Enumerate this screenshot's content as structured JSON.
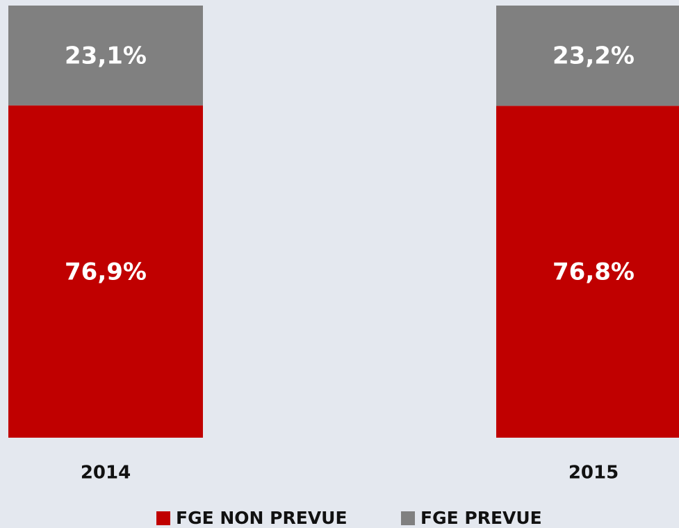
{
  "chart_data": {
    "type": "stacked_bar",
    "categories": [
      "2014",
      "2015"
    ],
    "series": [
      {
        "name": "FGE NON PREVUE",
        "color": "#c00000",
        "values": [
          76.9,
          76.8
        ],
        "value_labels": [
          "76,9%",
          "76,8%"
        ]
      },
      {
        "name": "FGE PREVUE",
        "color": "#808080",
        "values": [
          23.1,
          23.2
        ],
        "value_labels": [
          "23,1%",
          "23,2%"
        ]
      }
    ]
  }
}
